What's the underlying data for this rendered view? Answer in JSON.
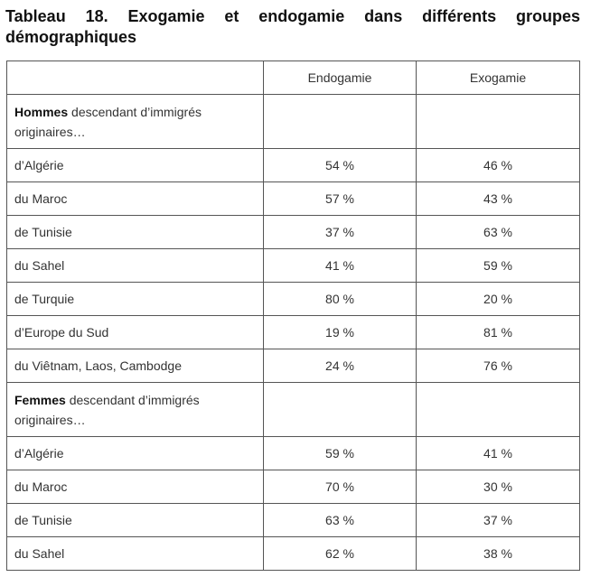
{
  "title": "Tableau 18. Exogamie et endogamie dans différents groupes démographiques",
  "columns": [
    "",
    "Endogamie",
    "Exogamie"
  ],
  "groups": [
    {
      "label_bold": "Hommes",
      "label_rest": " descendant d’immigrés originaires…",
      "rows": [
        {
          "origin": "d’Algérie",
          "endogamie": "54 %",
          "exogamie": "46 %"
        },
        {
          "origin": "du Maroc",
          "endogamie": "57 %",
          "exogamie": "43 %"
        },
        {
          "origin": "de Tunisie",
          "endogamie": "37 %",
          "exogamie": "63 %"
        },
        {
          "origin": "du Sahel",
          "endogamie": "41 %",
          "exogamie": "59 %"
        },
        {
          "origin": "de Turquie",
          "endogamie": "80 %",
          "exogamie": "20 %"
        },
        {
          "origin": "d’Europe du Sud",
          "endogamie": "19 %",
          "exogamie": "81 %"
        },
        {
          "origin": "du Viêtnam, Laos, Cambodge",
          "endogamie": "24 %",
          "exogamie": "76 %"
        }
      ]
    },
    {
      "label_bold": "Femmes",
      "label_rest": " descendant d’immigrés originaires…",
      "rows": [
        {
          "origin": "d’Algérie",
          "endogamie": "59 %",
          "exogamie": "41 %"
        },
        {
          "origin": "du Maroc",
          "endogamie": "70 %",
          "exogamie": "30 %"
        },
        {
          "origin": "de Tunisie",
          "endogamie": "63 %",
          "exogamie": "37 %"
        },
        {
          "origin": "du Sahel",
          "endogamie": "62 %",
          "exogamie": "38 %"
        }
      ]
    }
  ]
}
